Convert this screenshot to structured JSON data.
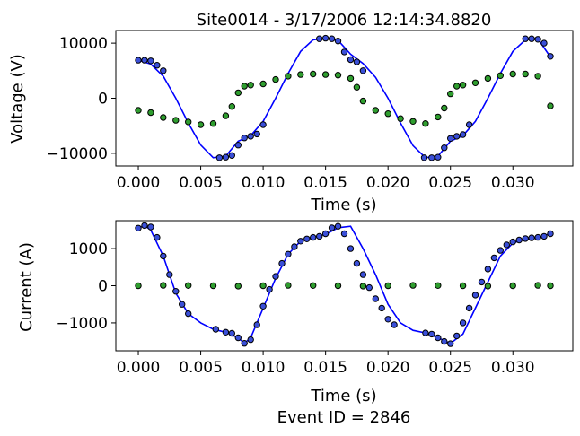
{
  "figure": {
    "title": "Site0014 - 3/17/2006 12:14:34.8820",
    "footer": "Event ID = 2846"
  },
  "colors": {
    "fit_line": "#0000ff",
    "marker_fill_blue": "#3a4fd8",
    "marker_fill_green": "#2f9e2f",
    "marker_fill_red": "#c0392b",
    "marker_edge": "#000000"
  },
  "chart_data": [
    {
      "type": "line",
      "xlabel": "Time (s)",
      "ylabel": "Voltage (V)",
      "xlim": [
        -0.0018,
        0.0348
      ],
      "ylim": [
        -12300,
        12300
      ],
      "xticks": [
        0.0,
        0.005,
        0.01,
        0.015,
        0.02,
        0.025,
        0.03
      ],
      "xtick_labels": [
        "0.000",
        "0.005",
        "0.010",
        "0.015",
        "0.020",
        "0.025",
        "0.030"
      ],
      "yticks": [
        -10000,
        0,
        10000
      ],
      "ytick_labels": [
        "−10000",
        "0",
        "10000"
      ],
      "grid": false,
      "series": [
        {
          "kind": "line",
          "color": "#0000ff",
          "x": [
            0.0,
            0.001,
            0.002,
            0.003,
            0.004,
            0.005,
            0.006,
            0.007,
            0.008,
            0.009,
            0.01,
            0.011,
            0.012,
            0.013,
            0.014,
            0.015,
            0.016,
            0.017,
            0.018,
            0.019,
            0.02,
            0.021,
            0.022,
            0.023,
            0.024,
            0.025,
            0.026,
            0.027,
            0.028,
            0.029,
            0.03,
            0.031,
            0.032,
            0.033
          ],
          "y": [
            6900,
            6200,
            4000,
            0,
            -4500,
            -8500,
            -10800,
            -10500,
            -7800,
            -6800,
            -4200,
            0,
            4500,
            8500,
            10600,
            10900,
            10500,
            8000,
            6300,
            3800,
            0,
            -4500,
            -8600,
            -10800,
            -10500,
            -7800,
            -6800,
            -4200,
            0,
            4500,
            8500,
            10600,
            10800,
            7500
          ]
        },
        {
          "kind": "markers",
          "fill": "#3a4fd8",
          "x": [
            0.0,
            0.0005,
            0.001,
            0.0015,
            0.002,
            0.0065,
            0.007,
            0.0075,
            0.008,
            0.0085,
            0.009,
            0.0095,
            0.01,
            0.0145,
            0.015,
            0.0155,
            0.016,
            0.0165,
            0.017,
            0.0175,
            0.018,
            0.0229,
            0.0235,
            0.024,
            0.0245,
            0.025,
            0.0255,
            0.026,
            0.0265,
            0.031,
            0.0315,
            0.032,
            0.0325,
            0.033
          ],
          "y": [
            6900,
            6900,
            6800,
            6000,
            5000,
            -10800,
            -10700,
            -10400,
            -8500,
            -7200,
            -6900,
            -6500,
            -4800,
            10800,
            10900,
            10800,
            10400,
            8400,
            7000,
            6600,
            5000,
            -10800,
            -10800,
            -10700,
            -9000,
            -7300,
            -6900,
            -6600,
            -4800,
            10800,
            10800,
            10700,
            10000,
            7600
          ]
        },
        {
          "kind": "markers",
          "fill": "#2f9e2f",
          "x": [
            0.0,
            0.001,
            0.002,
            0.003,
            0.004,
            0.005,
            0.006,
            0.007,
            0.0075,
            0.008,
            0.0085,
            0.009,
            0.01,
            0.011,
            0.012,
            0.013,
            0.014,
            0.015,
            0.016,
            0.017,
            0.0175,
            0.018,
            0.019,
            0.02,
            0.021,
            0.022,
            0.023,
            0.024,
            0.0245,
            0.025,
            0.0255,
            0.026,
            0.027,
            0.028,
            0.029,
            0.03,
            0.031,
            0.032,
            0.033
          ],
          "y": [
            -2200,
            -2600,
            -3500,
            -4000,
            -4300,
            -4800,
            -4600,
            -3200,
            -1500,
            1000,
            2200,
            2400,
            2600,
            3400,
            4000,
            4300,
            4400,
            4300,
            4200,
            3600,
            2000,
            -500,
            -2200,
            -2800,
            -3700,
            -4200,
            -4600,
            -3400,
            -1800,
            800,
            2200,
            2400,
            2800,
            3600,
            4100,
            4400,
            4400,
            4000,
            -1400
          ]
        }
      ]
    },
    {
      "type": "line",
      "xlabel": "Time (s)",
      "ylabel": "Current (A)",
      "xlim": [
        -0.0018,
        0.0348
      ],
      "ylim": [
        -1750,
        1750
      ],
      "xticks": [
        0.0,
        0.005,
        0.01,
        0.015,
        0.02,
        0.025,
        0.03
      ],
      "xtick_labels": [
        "0.000",
        "0.005",
        "0.010",
        "0.015",
        "0.020",
        "0.025",
        "0.030"
      ],
      "yticks": [
        -1000,
        0,
        1000
      ],
      "ytick_labels": [
        "−1000",
        "0",
        "1000"
      ],
      "grid": false,
      "series": [
        {
          "kind": "line",
          "color": "#0000ff",
          "x": [
            0.0,
            0.0005,
            0.001,
            0.002,
            0.003,
            0.004,
            0.005,
            0.006,
            0.007,
            0.008,
            0.0085,
            0.009,
            0.01,
            0.011,
            0.012,
            0.013,
            0.014,
            0.015,
            0.016,
            0.017,
            0.018,
            0.019,
            0.02,
            0.021,
            0.022,
            0.023,
            0.024,
            0.025,
            0.026,
            0.027,
            0.028,
            0.029,
            0.03,
            0.031,
            0.032,
            0.033
          ],
          "y": [
            1550,
            1620,
            1500,
            800,
            -200,
            -750,
            -1000,
            -1170,
            -1250,
            -1400,
            -1550,
            -1400,
            -600,
            200,
            850,
            1200,
            1300,
            1380,
            1560,
            1600,
            1000,
            300,
            -500,
            -1000,
            -1200,
            -1270,
            -1400,
            -1550,
            -1300,
            -600,
            100,
            800,
            1150,
            1250,
            1300,
            1400
          ]
        },
        {
          "kind": "markers",
          "fill": "#3a4fd8",
          "x": [
            0.0,
            0.0005,
            0.001,
            0.0015,
            0.002,
            0.0025,
            0.003,
            0.0035,
            0.004,
            0.0062,
            0.007,
            0.0075,
            0.008,
            0.0085,
            0.009,
            0.0095,
            0.01,
            0.0105,
            0.011,
            0.0115,
            0.012,
            0.0125,
            0.013,
            0.0135,
            0.014,
            0.0145,
            0.015,
            0.0155,
            0.016,
            0.0165,
            0.017,
            0.0175,
            0.018,
            0.0185,
            0.019,
            0.0195,
            0.02,
            0.0205,
            0.023,
            0.0235,
            0.024,
            0.0245,
            0.025,
            0.0255,
            0.026,
            0.0265,
            0.027,
            0.0275,
            0.028,
            0.0285,
            0.029,
            0.0295,
            0.03,
            0.0305,
            0.031,
            0.0315,
            0.032,
            0.0325,
            0.033
          ],
          "y": [
            1550,
            1620,
            1580,
            1300,
            800,
            300,
            -150,
            -500,
            -750,
            -1170,
            -1250,
            -1280,
            -1400,
            -1550,
            -1450,
            -1050,
            -550,
            -100,
            250,
            600,
            850,
            1050,
            1200,
            1260,
            1300,
            1330,
            1400,
            1560,
            1600,
            1400,
            1000,
            600,
            300,
            -50,
            -350,
            -600,
            -900,
            -1050,
            -1270,
            -1300,
            -1400,
            -1500,
            -1560,
            -1350,
            -1000,
            -600,
            -250,
            100,
            450,
            750,
            950,
            1100,
            1180,
            1230,
            1270,
            1290,
            1300,
            1330,
            1400
          ]
        },
        {
          "kind": "markers",
          "fill": "#2f9e2f",
          "x": [
            0.0,
            0.002,
            0.004,
            0.006,
            0.008,
            0.01,
            0.012,
            0.014,
            0.016,
            0.018,
            0.02,
            0.022,
            0.024,
            0.026,
            0.028,
            0.03,
            0.032,
            0.033
          ],
          "y": [
            0,
            10,
            5,
            0,
            -10,
            0,
            10,
            5,
            0,
            -10,
            0,
            10,
            5,
            0,
            -10,
            0,
            10,
            0
          ]
        }
      ]
    }
  ]
}
